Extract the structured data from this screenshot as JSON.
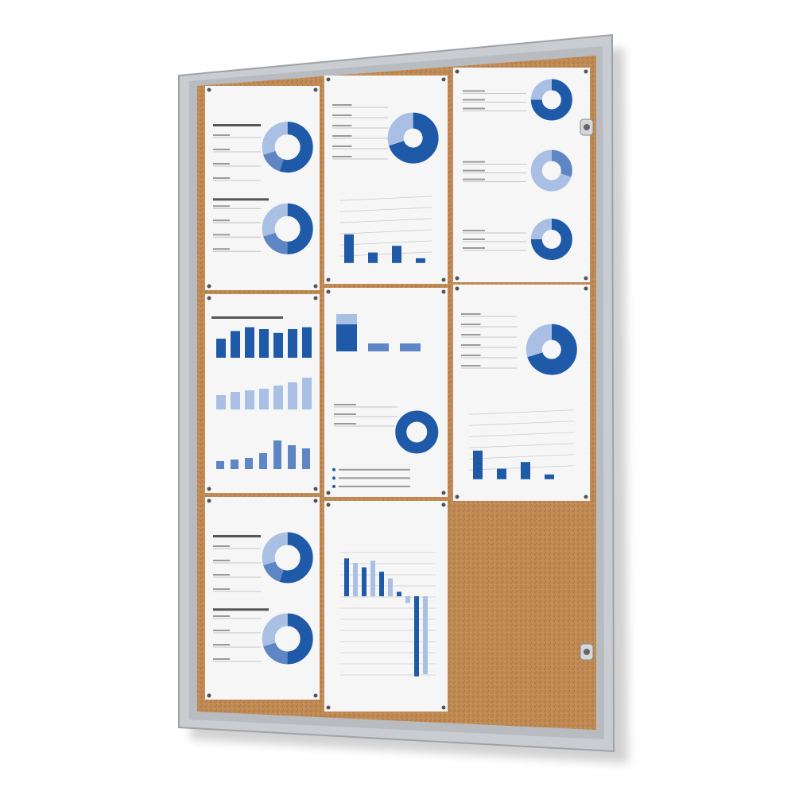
{
  "scene": {
    "subject": "lockable-notice-board-cabinet",
    "colors": {
      "background": "#ffffff",
      "frame": "#c9ccd0",
      "frame_dark": "#9ea3a8",
      "cork": "#c08a55",
      "sheet": "#f6f6f6",
      "chart_dark": "#1e5aa8",
      "chart_mid": "#5f86c4",
      "chart_light": "#a9bfe3"
    },
    "sheets": [
      {
        "slot": "top-left",
        "content": "two-donuts"
      },
      {
        "slot": "top-center",
        "content": "donut-and-bars"
      },
      {
        "slot": "top-right",
        "content": "three-donuts"
      },
      {
        "slot": "middle-left",
        "content": "bar-charts"
      },
      {
        "slot": "middle-center",
        "content": "stacked-bars-and-donut"
      },
      {
        "slot": "middle-right",
        "content": "donut-and-bars"
      },
      {
        "slot": "bottom-left",
        "content": "two-donuts"
      },
      {
        "slot": "bottom-center",
        "content": "pos-neg-bars"
      }
    ],
    "empty_slot": "bottom-right",
    "locks": 2
  }
}
